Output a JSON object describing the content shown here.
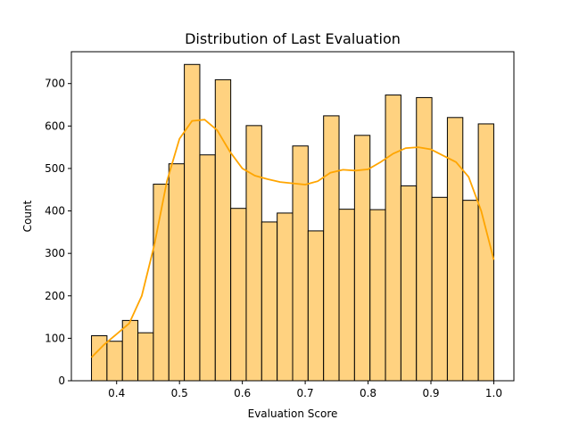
{
  "chart_data": {
    "type": "bar",
    "title": "Distribution of Last Evaluation",
    "xlabel": "Evaluation Score",
    "ylabel": "Count",
    "xlim": [
      0.328,
      1.032
    ],
    "ylim": [
      0,
      775
    ],
    "xticks": [
      0.4,
      0.5,
      0.6,
      0.7,
      0.8,
      0.9,
      1.0
    ],
    "xtick_labels": [
      "0.4",
      "0.5",
      "0.6",
      "0.7",
      "0.8",
      "0.9",
      "1.0"
    ],
    "yticks": [
      0,
      100,
      200,
      300,
      400,
      500,
      600,
      700
    ],
    "ytick_labels": [
      "0",
      "100",
      "200",
      "300",
      "400",
      "500",
      "600",
      "700"
    ],
    "bins": {
      "start": 0.36,
      "end": 1.0,
      "counts": [
        106,
        93,
        142,
        113,
        463,
        511,
        745,
        532,
        709,
        406,
        601,
        374,
        395,
        553,
        353,
        624,
        404,
        578,
        403,
        673,
        459,
        667,
        432,
        620,
        425,
        605
      ]
    },
    "kde": {
      "x": [
        0.36,
        0.38,
        0.4,
        0.42,
        0.44,
        0.46,
        0.48,
        0.5,
        0.52,
        0.54,
        0.56,
        0.58,
        0.6,
        0.62,
        0.64,
        0.66,
        0.68,
        0.7,
        0.72,
        0.74,
        0.76,
        0.78,
        0.8,
        0.82,
        0.84,
        0.86,
        0.88,
        0.9,
        0.92,
        0.94,
        0.96,
        0.98,
        1.0
      ],
      "y": [
        55,
        85,
        110,
        135,
        200,
        320,
        470,
        570,
        612,
        615,
        590,
        540,
        500,
        483,
        475,
        468,
        465,
        462,
        470,
        490,
        497,
        495,
        498,
        515,
        535,
        548,
        550,
        545,
        530,
        515,
        480,
        400,
        285
      ]
    },
    "bar_color": "#FFD280",
    "bar_edge_color": "#000000",
    "kde_color": "#FFA500",
    "grid": false,
    "legend": "none"
  }
}
